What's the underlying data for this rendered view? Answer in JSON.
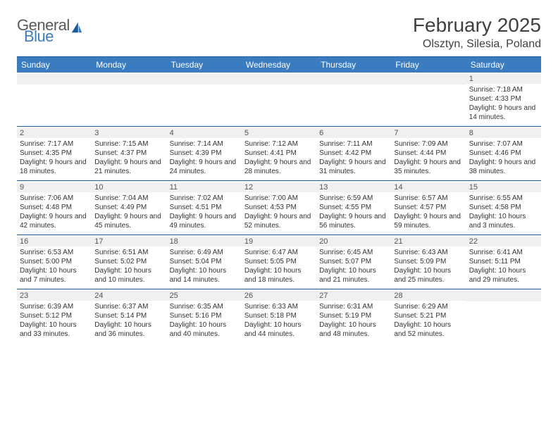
{
  "logo": {
    "word1": "General",
    "word2": "Blue",
    "icon_color": "#1a5a99"
  },
  "title": "February 2025",
  "subtitle": "Olsztyn, Silesia, Poland",
  "colors": {
    "header_bg": "#3b7bbf",
    "header_text": "#ffffff",
    "rule": "#1a5a99",
    "daybar_bg": "#f0f0f0",
    "text": "#333333"
  },
  "weekdays": [
    "Sunday",
    "Monday",
    "Tuesday",
    "Wednesday",
    "Thursday",
    "Friday",
    "Saturday"
  ],
  "weeks": [
    [
      null,
      null,
      null,
      null,
      null,
      null,
      {
        "n": "1",
        "sr": "7:18 AM",
        "ss": "4:33 PM",
        "dl": "9 hours and 14 minutes."
      }
    ],
    [
      {
        "n": "2",
        "sr": "7:17 AM",
        "ss": "4:35 PM",
        "dl": "9 hours and 18 minutes."
      },
      {
        "n": "3",
        "sr": "7:15 AM",
        "ss": "4:37 PM",
        "dl": "9 hours and 21 minutes."
      },
      {
        "n": "4",
        "sr": "7:14 AM",
        "ss": "4:39 PM",
        "dl": "9 hours and 24 minutes."
      },
      {
        "n": "5",
        "sr": "7:12 AM",
        "ss": "4:41 PM",
        "dl": "9 hours and 28 minutes."
      },
      {
        "n": "6",
        "sr": "7:11 AM",
        "ss": "4:42 PM",
        "dl": "9 hours and 31 minutes."
      },
      {
        "n": "7",
        "sr": "7:09 AM",
        "ss": "4:44 PM",
        "dl": "9 hours and 35 minutes."
      },
      {
        "n": "8",
        "sr": "7:07 AM",
        "ss": "4:46 PM",
        "dl": "9 hours and 38 minutes."
      }
    ],
    [
      {
        "n": "9",
        "sr": "7:06 AM",
        "ss": "4:48 PM",
        "dl": "9 hours and 42 minutes."
      },
      {
        "n": "10",
        "sr": "7:04 AM",
        "ss": "4:49 PM",
        "dl": "9 hours and 45 minutes."
      },
      {
        "n": "11",
        "sr": "7:02 AM",
        "ss": "4:51 PM",
        "dl": "9 hours and 49 minutes."
      },
      {
        "n": "12",
        "sr": "7:00 AM",
        "ss": "4:53 PM",
        "dl": "9 hours and 52 minutes."
      },
      {
        "n": "13",
        "sr": "6:59 AM",
        "ss": "4:55 PM",
        "dl": "9 hours and 56 minutes."
      },
      {
        "n": "14",
        "sr": "6:57 AM",
        "ss": "4:57 PM",
        "dl": "9 hours and 59 minutes."
      },
      {
        "n": "15",
        "sr": "6:55 AM",
        "ss": "4:58 PM",
        "dl": "10 hours and 3 minutes."
      }
    ],
    [
      {
        "n": "16",
        "sr": "6:53 AM",
        "ss": "5:00 PM",
        "dl": "10 hours and 7 minutes."
      },
      {
        "n": "17",
        "sr": "6:51 AM",
        "ss": "5:02 PM",
        "dl": "10 hours and 10 minutes."
      },
      {
        "n": "18",
        "sr": "6:49 AM",
        "ss": "5:04 PM",
        "dl": "10 hours and 14 minutes."
      },
      {
        "n": "19",
        "sr": "6:47 AM",
        "ss": "5:05 PM",
        "dl": "10 hours and 18 minutes."
      },
      {
        "n": "20",
        "sr": "6:45 AM",
        "ss": "5:07 PM",
        "dl": "10 hours and 21 minutes."
      },
      {
        "n": "21",
        "sr": "6:43 AM",
        "ss": "5:09 PM",
        "dl": "10 hours and 25 minutes."
      },
      {
        "n": "22",
        "sr": "6:41 AM",
        "ss": "5:11 PM",
        "dl": "10 hours and 29 minutes."
      }
    ],
    [
      {
        "n": "23",
        "sr": "6:39 AM",
        "ss": "5:12 PM",
        "dl": "10 hours and 33 minutes."
      },
      {
        "n": "24",
        "sr": "6:37 AM",
        "ss": "5:14 PM",
        "dl": "10 hours and 36 minutes."
      },
      {
        "n": "25",
        "sr": "6:35 AM",
        "ss": "5:16 PM",
        "dl": "10 hours and 40 minutes."
      },
      {
        "n": "26",
        "sr": "6:33 AM",
        "ss": "5:18 PM",
        "dl": "10 hours and 44 minutes."
      },
      {
        "n": "27",
        "sr": "6:31 AM",
        "ss": "5:19 PM",
        "dl": "10 hours and 48 minutes."
      },
      {
        "n": "28",
        "sr": "6:29 AM",
        "ss": "5:21 PM",
        "dl": "10 hours and 52 minutes."
      },
      null
    ]
  ],
  "labels": {
    "sunrise": "Sunrise:",
    "sunset": "Sunset:",
    "daylight": "Daylight:"
  }
}
